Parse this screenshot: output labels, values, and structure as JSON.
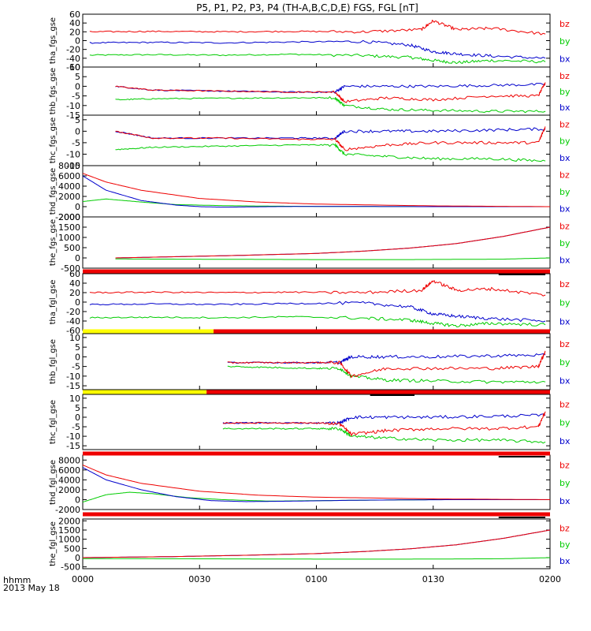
{
  "title": "P5, P1, P2, P3, P4 (TH-A,B,C,D,E) FGS, FGL [nT]",
  "footer": {
    "label_hhmm": "hhmm",
    "label_date": "2013 May 18"
  },
  "colors": {
    "bz": "#ee0000",
    "by": "#00cc00",
    "bx": "#0000cc",
    "bar_red": "#ee0000",
    "bar_yellow": "#ffff00",
    "bar_black": "#000000"
  },
  "chart_data": {
    "type": "line",
    "x_ticks": [
      "0000",
      "0030",
      "0100",
      "0130",
      "0200"
    ],
    "x_range_hours": [
      0,
      2
    ],
    "panels": [
      {
        "ylabel": "tha_fgs_gse",
        "yticks": [
          "60",
          "40",
          "20",
          "0",
          "-20",
          "-40",
          "-60"
        ],
        "ylim": [
          -60,
          60
        ],
        "legend": [
          "bz",
          "by",
          "bx"
        ],
        "series": [
          {
            "name": "bz",
            "x": [
              0.03,
              0.3,
              0.6,
              0.9,
              1.2,
              1.45,
              1.5,
              1.6,
              1.75,
              1.98
            ],
            "y": [
              20,
              21,
              20,
              21,
              20,
              25,
              45,
              25,
              28,
              15
            ]
          },
          {
            "name": "by",
            "x": [
              0.03,
              0.3,
              0.6,
              0.9,
              1.2,
              1.4,
              1.5,
              1.6,
              1.75,
              1.98
            ],
            "y": [
              -33,
              -32,
              -33,
              -31,
              -34,
              -38,
              -45,
              -50,
              -45,
              -48
            ]
          },
          {
            "name": "bx",
            "x": [
              0.03,
              0.3,
              0.6,
              0.9,
              1.2,
              1.4,
              1.5,
              1.6,
              1.75,
              1.98
            ],
            "y": [
              -5,
              -4,
              -5,
              -3,
              -2,
              -10,
              -25,
              -30,
              -35,
              -40
            ]
          }
        ]
      },
      {
        "ylabel": "thb_fgs_gse",
        "yticks": [
          "10",
          "5",
          "0",
          "-5",
          "-10",
          "-15"
        ],
        "ylim": [
          -15,
          10
        ],
        "legend": [
          "bz",
          "by",
          "bx"
        ],
        "series": [
          {
            "name": "bz",
            "x": [
              0.14,
              0.3,
              0.6,
              0.9,
              1.08,
              1.12,
              1.3,
              1.5,
              1.75,
              1.95,
              1.98
            ],
            "y": [
              0,
              -2,
              -2.5,
              -3,
              -3,
              -8,
              -6,
              -7,
              -5,
              -5,
              2
            ]
          },
          {
            "name": "by",
            "x": [
              0.14,
              0.3,
              0.6,
              0.9,
              1.08,
              1.12,
              1.3,
              1.5,
              1.75,
              1.98
            ],
            "y": [
              -7,
              -6.5,
              -6.2,
              -6,
              -6,
              -10,
              -12,
              -12.5,
              -13,
              -13
            ]
          },
          {
            "name": "bx",
            "x": [
              0.14,
              0.3,
              0.6,
              0.9,
              1.08,
              1.12,
              1.3,
              1.5,
              1.75,
              1.98
            ],
            "y": [
              0,
              -2,
              -2.5,
              -3,
              -3,
              0,
              0,
              0,
              0.5,
              1
            ]
          }
        ]
      },
      {
        "ylabel": "thc_fgs_gse",
        "yticks": [
          "5",
          "0",
          "-5",
          "-10",
          "-15"
        ],
        "ylim": [
          -15,
          7
        ],
        "legend": [
          "bz",
          "by",
          "bx"
        ],
        "series": [
          {
            "name": "bz",
            "x": [
              0.14,
              0.3,
              0.6,
              0.9,
              1.08,
              1.12,
              1.3,
              1.5,
              1.75,
              1.95,
              1.98
            ],
            "y": [
              0,
              -3,
              -3,
              -3.5,
              -3.5,
              -8,
              -6,
              -5,
              -5,
              -5,
              2
            ]
          },
          {
            "name": "by",
            "x": [
              0.14,
              0.3,
              0.6,
              0.9,
              1.08,
              1.12,
              1.3,
              1.5,
              1.75,
              1.98
            ],
            "y": [
              -8,
              -7,
              -6.5,
              -6,
              -6,
              -10,
              -11,
              -12,
              -12,
              -13
            ]
          },
          {
            "name": "bx",
            "x": [
              0.14,
              0.3,
              0.6,
              0.9,
              1.08,
              1.12,
              1.3,
              1.5,
              1.75,
              1.98
            ],
            "y": [
              0,
              -3,
              -3,
              -3,
              -3,
              0,
              0,
              0,
              0.5,
              1
            ]
          }
        ]
      },
      {
        "ylabel": "thd_fgs_gse",
        "yticks": [
          "8000",
          "6000",
          "4000",
          "2000",
          "0",
          "-2000"
        ],
        "ylim": [
          -2000,
          8000
        ],
        "legend": [
          "bz",
          "by",
          "bx"
        ],
        "series": [
          {
            "name": "bz",
            "x": [
              0.0,
              0.1,
              0.25,
              0.5,
              0.75,
              1.0,
              1.5,
              2.0
            ],
            "y": [
              6500,
              4800,
              3200,
              1600,
              900,
              500,
              150,
              0
            ]
          },
          {
            "name": "by",
            "x": [
              0.0,
              0.1,
              0.25,
              0.4,
              0.6,
              0.8,
              1.0,
              1.5,
              2.0
            ],
            "y": [
              1000,
              1500,
              900,
              400,
              200,
              100,
              50,
              0,
              0
            ]
          },
          {
            "name": "bx",
            "x": [
              0.0,
              0.1,
              0.25,
              0.4,
              0.5,
              0.6,
              0.8,
              1.0,
              1.5,
              2.0
            ],
            "y": [
              6000,
              3200,
              1200,
              300,
              0,
              -100,
              0,
              50,
              0,
              0
            ]
          }
        ]
      },
      {
        "ylabel": "the_fgs_gse",
        "yticks": [
          "2000",
          "1500",
          "1000",
          "500",
          "0",
          "-500"
        ],
        "ylim": [
          -500,
          2000
        ],
        "legend": [
          "bz",
          "by",
          "bx"
        ],
        "series": [
          {
            "name": "bz",
            "x": [
              0.14,
              0.4,
              0.7,
              1.0,
              1.2,
              1.4,
              1.6,
              1.8,
              2.0
            ],
            "y": [
              0,
              60,
              130,
              220,
              330,
              480,
              700,
              1050,
              1500
            ]
          },
          {
            "name": "by",
            "x": [
              0.14,
              0.4,
              0.7,
              1.0,
              1.2,
              1.4,
              1.6,
              1.8,
              2.0
            ],
            "y": [
              -50,
              -60,
              -70,
              -80,
              -80,
              -80,
              -70,
              -60,
              0
            ]
          },
          {
            "name": "bx",
            "x": [
              0.14,
              0.4,
              0.7,
              1.0,
              1.2,
              1.4,
              1.6,
              1.8,
              2.0
            ],
            "y": [
              0,
              60,
              130,
              220,
              330,
              480,
              700,
              1050,
              1500
            ]
          }
        ]
      },
      {
        "ylabel": "tha_fgl_gse",
        "yticks": [
          "60",
          "40",
          "20",
          "0",
          "-20",
          "-40",
          "-60"
        ],
        "ylim": [
          -60,
          60
        ],
        "legend": [
          "bz",
          "by",
          "bx"
        ],
        "series": [
          {
            "name": "bz",
            "x": [
              0.03,
              0.3,
              0.6,
              0.9,
              1.2,
              1.45,
              1.5,
              1.6,
              1.75,
              1.98
            ],
            "y": [
              20,
              21,
              20,
              21,
              20,
              25,
              45,
              25,
              28,
              15
            ]
          },
          {
            "name": "by",
            "x": [
              0.03,
              0.3,
              0.6,
              0.9,
              1.2,
              1.4,
              1.5,
              1.6,
              1.75,
              1.98
            ],
            "y": [
              -33,
              -32,
              -33,
              -31,
              -34,
              -38,
              -45,
              -50,
              -45,
              -48
            ]
          },
          {
            "name": "bx",
            "x": [
              0.03,
              0.3,
              0.6,
              0.9,
              1.2,
              1.4,
              1.5,
              1.6,
              1.75,
              1.98
            ],
            "y": [
              -5,
              -4,
              -5,
              -3,
              -2,
              -10,
              -25,
              -30,
              -35,
              -40
            ]
          }
        ]
      },
      {
        "ylabel": "thb_fgl_gse",
        "yticks": [
          "10",
          "5",
          "0",
          "-5",
          "-10",
          "-15"
        ],
        "ylim": [
          -17,
          12
        ],
        "legend": [
          "bz",
          "by",
          "bx"
        ],
        "series": [
          {
            "name": "bz",
            "x": [
              0.62,
              0.8,
              1.0,
              1.1,
              1.15,
              1.3,
              1.5,
              1.75,
              1.95,
              1.98
            ],
            "y": [
              -3,
              -3,
              -3,
              -3,
              -10,
              -6,
              -6,
              -6,
              -5,
              3
            ]
          },
          {
            "name": "by",
            "x": [
              0.62,
              0.8,
              1.0,
              1.1,
              1.15,
              1.3,
              1.5,
              1.75,
              1.98
            ],
            "y": [
              -5,
              -5.5,
              -6,
              -6,
              -10,
              -12,
              -12.5,
              -13,
              -13
            ]
          },
          {
            "name": "bx",
            "x": [
              0.62,
              0.8,
              1.0,
              1.1,
              1.15,
              1.3,
              1.5,
              1.75,
              1.98
            ],
            "y": [
              -3,
              -3,
              -3,
              -3,
              0,
              0,
              0,
              0.5,
              1
            ]
          }
        ]
      },
      {
        "ylabel": "thc_fgl_gse",
        "yticks": [
          "10",
          "5",
          "0",
          "-5",
          "-10",
          "-15"
        ],
        "ylim": [
          -17,
          12
        ],
        "legend": [
          "bz",
          "by",
          "bx"
        ],
        "series": [
          {
            "name": "bz",
            "x": [
              0.6,
              0.8,
              1.0,
              1.1,
              1.15,
              1.3,
              1.5,
              1.75,
              1.95,
              1.98
            ],
            "y": [
              -3,
              -3,
              -3,
              -3.5,
              -9,
              -7,
              -6,
              -6,
              -5,
              3
            ]
          },
          {
            "name": "by",
            "x": [
              0.6,
              0.8,
              1.0,
              1.1,
              1.15,
              1.3,
              1.5,
              1.75,
              1.98
            ],
            "y": [
              -6,
              -6,
              -6,
              -6,
              -10,
              -11,
              -12,
              -12,
              -13
            ]
          },
          {
            "name": "bx",
            "x": [
              0.6,
              0.8,
              1.0,
              1.1,
              1.15,
              1.3,
              1.5,
              1.75,
              1.98
            ],
            "y": [
              -3,
              -3,
              -3,
              -3,
              0,
              0,
              0,
              0.5,
              1
            ]
          }
        ]
      },
      {
        "ylabel": "thd_fgl_gse",
        "yticks": [
          "8000",
          "6000",
          "4000",
          "2000",
          "0",
          "-2000"
        ],
        "ylim": [
          -2000,
          9000
        ],
        "legend": [
          "bz",
          "by",
          "bx"
        ],
        "series": [
          {
            "name": "bz",
            "x": [
              0.0,
              0.1,
              0.25,
              0.5,
              0.75,
              1.0,
              1.5,
              2.0
            ],
            "y": [
              7000,
              5000,
              3300,
              1700,
              900,
              500,
              150,
              0
            ]
          },
          {
            "name": "by",
            "x": [
              0.0,
              0.1,
              0.2,
              0.3,
              0.45,
              0.6,
              0.8,
              1.0,
              1.5,
              2.0
            ],
            "y": [
              -500,
              1000,
              1500,
              1200,
              400,
              0,
              -300,
              -200,
              0,
              0
            ]
          },
          {
            "name": "bx",
            "x": [
              0.0,
              0.1,
              0.25,
              0.4,
              0.55,
              0.7,
              0.9,
              1.2,
              1.6,
              2.0
            ],
            "y": [
              6500,
              4000,
              2000,
              600,
              -200,
              -400,
              -300,
              -100,
              0,
              0
            ]
          }
        ]
      },
      {
        "ylabel": "the_fgl_gse",
        "yticks": [
          "2000",
          "1500",
          "1000",
          "500",
          "0",
          "-500"
        ],
        "ylim": [
          -600,
          2100
        ],
        "legend": [
          "bz",
          "by",
          "bx"
        ],
        "series": [
          {
            "name": "bz",
            "x": [
              0.0,
              0.4,
              0.7,
              1.0,
              1.2,
              1.4,
              1.6,
              1.8,
              2.0
            ],
            "y": [
              0,
              60,
              130,
              220,
              330,
              480,
              700,
              1050,
              1500
            ]
          },
          {
            "name": "by",
            "x": [
              0.0,
              0.4,
              0.7,
              1.0,
              1.2,
              1.4,
              1.6,
              1.8,
              2.0
            ],
            "y": [
              -50,
              -60,
              -70,
              -80,
              -80,
              -80,
              -70,
              -60,
              0
            ]
          },
          {
            "name": "bx",
            "x": [
              0.0,
              0.4,
              0.7,
              1.0,
              1.2,
              1.4,
              1.6,
              1.8,
              2.0
            ],
            "y": [
              0,
              60,
              130,
              220,
              330,
              480,
              700,
              1050,
              1500
            ]
          }
        ]
      }
    ],
    "status_bars": [
      {
        "after_panel": 4,
        "segments": [
          {
            "x": [
              0,
              2
            ],
            "color": "red"
          }
        ],
        "marks": [
          [
            1.78,
            1.98
          ]
        ]
      },
      {
        "after_panel": 5,
        "segments": [
          {
            "x": [
              0,
              0.56
            ],
            "color": "yellow"
          },
          {
            "x": [
              0.56,
              2
            ],
            "color": "red"
          }
        ],
        "marks": []
      },
      {
        "after_panel": 6,
        "segments": [
          {
            "x": [
              0,
              0.53
            ],
            "color": "yellow"
          },
          {
            "x": [
              0.53,
              2
            ],
            "color": "red"
          }
        ],
        "marks": [
          [
            1.23,
            1.42
          ]
        ]
      },
      {
        "after_panel": 7,
        "segments": [
          {
            "x": [
              0,
              2
            ],
            "color": "red"
          }
        ],
        "marks": [
          [
            1.78,
            1.98
          ]
        ]
      },
      {
        "after_panel": 8,
        "segments": [
          {
            "x": [
              0,
              2
            ],
            "color": "red"
          }
        ],
        "marks": [
          [
            1.78,
            1.98
          ]
        ]
      }
    ]
  }
}
